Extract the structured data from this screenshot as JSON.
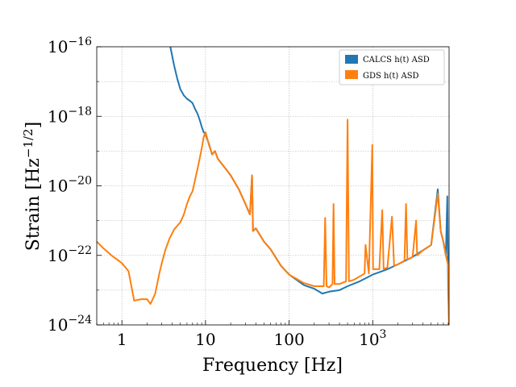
{
  "chart_data": {
    "type": "line",
    "xscale": "log",
    "yscale": "log",
    "xlim": [
      0.5,
      8192
    ],
    "ylim": [
      1e-24,
      1e-16
    ],
    "xlabel": "Frequency [Hz]",
    "ylabel": "Strain [Hz −1/2]",
    "ylabel_parts": {
      "pre": "Strain [Hz",
      "sup": "−1/2",
      "post": "]"
    },
    "grid": true,
    "legend_position": "top-right",
    "x_ticks": [
      {
        "value": 1,
        "label": "1"
      },
      {
        "value": 10,
        "label": "10"
      },
      {
        "value": 100,
        "label": "100"
      },
      {
        "value": 1000,
        "label": "10",
        "sup": "3"
      }
    ],
    "y_ticks": [
      {
        "value": 1e-24,
        "label": "10",
        "sup": "−24"
      },
      {
        "value": 1e-22,
        "label": "10",
        "sup": "−22"
      },
      {
        "value": 1e-20,
        "label": "10",
        "sup": "−20"
      },
      {
        "value": 1e-18,
        "label": "10",
        "sup": "−18"
      },
      {
        "value": 1e-16,
        "label": "10",
        "sup": "−16"
      }
    ],
    "series": [
      {
        "name": "CALCS h(t) ASD",
        "color": "#1f77b4",
        "points": [
          [
            3.8,
            1e-16
          ],
          [
            4.2,
            3e-17
          ],
          [
            4.6,
            1.2e-17
          ],
          [
            5.0,
            6e-18
          ],
          [
            5.5,
            4e-18
          ],
          [
            6.0,
            3.2e-18
          ],
          [
            6.5,
            2.8e-18
          ],
          [
            7.0,
            2.4e-18
          ],
          [
            7.5,
            1.6e-18
          ],
          [
            8.0,
            1.2e-18
          ],
          [
            8.5,
            8e-19
          ],
          [
            9.0,
            5e-19
          ],
          [
            9.5,
            3.5e-19
          ],
          [
            10,
            3e-19
          ],
          [
            11,
            1.6e-19
          ],
          [
            12,
            8e-20
          ],
          [
            13,
            1e-19
          ],
          [
            14,
            6e-20
          ],
          [
            16,
            4e-20
          ],
          [
            18,
            2.8e-20
          ],
          [
            20,
            2e-20
          ],
          [
            25,
            8e-21
          ],
          [
            30,
            3e-21
          ],
          [
            34,
            1.5e-21
          ],
          [
            36,
            2e-20
          ],
          [
            37,
            5e-22
          ],
          [
            40,
            6e-22
          ],
          [
            50,
            2.5e-22
          ],
          [
            60,
            1.5e-22
          ],
          [
            80,
            5e-23
          ],
          [
            100,
            2.8e-23
          ],
          [
            150,
            1.4e-23
          ],
          [
            200,
            1.1e-23
          ],
          [
            250,
            8e-24
          ],
          [
            300,
            9e-24
          ],
          [
            400,
            1e-23
          ],
          [
            500,
            1.3e-23
          ],
          [
            700,
            1.8e-23
          ],
          [
            1000,
            2.8e-23
          ],
          [
            1500,
            4e-23
          ],
          [
            2000,
            5.5e-23
          ],
          [
            3000,
            9e-23
          ],
          [
            4000,
            1.4e-22
          ],
          [
            5000,
            2e-22
          ],
          [
            6000,
            8e-21
          ],
          [
            6500,
            5e-22
          ],
          [
            7000,
            2.5e-22
          ],
          [
            7500,
            1e-22
          ],
          [
            7800,
            5e-21
          ],
          [
            8000,
            1e-23
          ],
          [
            8192,
            1e-24
          ]
        ]
      },
      {
        "name": "GDS h(t) ASD",
        "color": "#ff7f0e",
        "points": [
          [
            0.5,
            2.5e-22
          ],
          [
            0.6,
            1.6e-22
          ],
          [
            0.75,
            1e-22
          ],
          [
            1.0,
            6e-23
          ],
          [
            1.2,
            3.5e-23
          ],
          [
            1.4,
            5e-24
          ],
          [
            1.7,
            5.5e-24
          ],
          [
            2.0,
            5.5e-24
          ],
          [
            2.2,
            4e-24
          ],
          [
            2.5,
            8e-24
          ],
          [
            2.8,
            3e-23
          ],
          [
            3.0,
            6e-23
          ],
          [
            3.3,
            1.4e-22
          ],
          [
            3.7,
            3e-22
          ],
          [
            4.2,
            5.5e-22
          ],
          [
            5.0,
            9e-22
          ],
          [
            5.5,
            1.5e-21
          ],
          [
            6.0,
            3e-21
          ],
          [
            6.5,
            5e-21
          ],
          [
            7.0,
            7e-21
          ],
          [
            7.5,
            1.5e-20
          ],
          [
            8.0,
            3e-20
          ],
          [
            8.5,
            6e-20
          ],
          [
            9.0,
            1.2e-19
          ],
          [
            9.5,
            2.5e-19
          ],
          [
            10,
            3.5e-19
          ],
          [
            11,
            1.5e-19
          ],
          [
            12,
            8e-20
          ],
          [
            13,
            1e-19
          ],
          [
            14,
            6e-20
          ],
          [
            16,
            4e-20
          ],
          [
            18,
            2.8e-20
          ],
          [
            20,
            2e-20
          ],
          [
            25,
            8e-21
          ],
          [
            30,
            3e-21
          ],
          [
            34,
            1.5e-21
          ],
          [
            36,
            2e-20
          ],
          [
            37,
            5e-22
          ],
          [
            40,
            6e-22
          ],
          [
            50,
            2.5e-22
          ],
          [
            60,
            1.5e-22
          ],
          [
            80,
            5e-23
          ],
          [
            100,
            2.8e-23
          ],
          [
            150,
            1.6e-23
          ],
          [
            200,
            1.3e-23
          ],
          [
            260,
            1.3e-23
          ],
          [
            270,
            1.2e-21
          ],
          [
            280,
            1.3e-23
          ],
          [
            300,
            1.2e-23
          ],
          [
            330,
            1.5e-23
          ],
          [
            340,
            3e-21
          ],
          [
            350,
            1.5e-23
          ],
          [
            400,
            1.5e-23
          ],
          [
            480,
            1.8e-23
          ],
          [
            500,
            8e-19
          ],
          [
            520,
            1.8e-23
          ],
          [
            600,
            2e-23
          ],
          [
            800,
            3e-23
          ],
          [
            820,
            2e-22
          ],
          [
            900,
            3e-23
          ],
          [
            990,
            1.5e-19
          ],
          [
            1010,
            4e-23
          ],
          [
            1200,
            4e-23
          ],
          [
            1300,
            2e-21
          ],
          [
            1350,
            4e-23
          ],
          [
            1500,
            4.5e-23
          ],
          [
            1700,
            1.3e-21
          ],
          [
            1800,
            5e-23
          ],
          [
            2000,
            5.5e-23
          ],
          [
            2400,
            7e-23
          ],
          [
            2500,
            3e-21
          ],
          [
            2600,
            7.5e-23
          ],
          [
            3000,
            9e-23
          ],
          [
            3300,
            1e-21
          ],
          [
            3400,
            1e-22
          ],
          [
            4000,
            1.4e-22
          ],
          [
            5000,
            2e-22
          ],
          [
            6000,
            6e-21
          ],
          [
            6500,
            5e-22
          ],
          [
            7000,
            2.5e-22
          ],
          [
            7500,
            1e-22
          ],
          [
            8000,
            5e-23
          ],
          [
            8192,
            1e-24
          ]
        ]
      }
    ]
  }
}
